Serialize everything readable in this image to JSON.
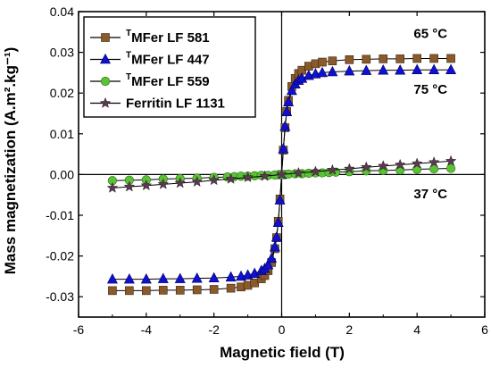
{
  "chart_data": {
    "type": "scatter",
    "title": "",
    "xlabel": "Magnetic field (T)",
    "ylabel": "Mass magnetization (A.m².kg⁻¹)",
    "xlim": [
      -6,
      6
    ],
    "ylim": [
      -0.035,
      0.04
    ],
    "xticks": [
      -6,
      -4,
      -2,
      0,
      2,
      4,
      6
    ],
    "yticks": [
      -0.03,
      -0.02,
      -0.01,
      0.0,
      0.01,
      0.02,
      0.03,
      0.04
    ],
    "xtick_labels": [
      "-6",
      "-4",
      "-2",
      "0",
      "2",
      "4",
      "6"
    ],
    "ytick_labels": [
      "-0.03",
      "-0.02",
      "-0.01",
      "0.00",
      "0.01",
      "0.02",
      "0.03",
      "0.04"
    ],
    "grid": false,
    "legend_position": "top-left",
    "series": [
      {
        "name_prefix": "T",
        "name": "MFer LF 581",
        "marker": "square",
        "color": "#8B5A2B",
        "points": [
          [
            -5,
            -0.0285
          ],
          [
            -4.5,
            -0.0285
          ],
          [
            -4,
            -0.0285
          ],
          [
            -3.5,
            -0.0284
          ],
          [
            -3,
            -0.0284
          ],
          [
            -2.5,
            -0.0283
          ],
          [
            -2,
            -0.0282
          ],
          [
            -1.5,
            -0.0279
          ],
          [
            -1.2,
            -0.0276
          ],
          [
            -1,
            -0.0272
          ],
          [
            -0.8,
            -0.0266
          ],
          [
            -0.6,
            -0.0256
          ],
          [
            -0.5,
            -0.0248
          ],
          [
            -0.4,
            -0.0236
          ],
          [
            -0.3,
            -0.0216
          ],
          [
            -0.2,
            -0.0182
          ],
          [
            -0.15,
            -0.0155
          ],
          [
            -0.1,
            -0.0115
          ],
          [
            -0.05,
            -0.006
          ],
          [
            0,
            0
          ],
          [
            0.05,
            0.006
          ],
          [
            0.1,
            0.0115
          ],
          [
            0.15,
            0.0155
          ],
          [
            0.2,
            0.0182
          ],
          [
            0.3,
            0.0216
          ],
          [
            0.4,
            0.0236
          ],
          [
            0.5,
            0.0248
          ],
          [
            0.6,
            0.0256
          ],
          [
            0.8,
            0.0266
          ],
          [
            1,
            0.0272
          ],
          [
            1.2,
            0.0276
          ],
          [
            1.5,
            0.0279
          ],
          [
            2,
            0.0282
          ],
          [
            2.5,
            0.0283
          ],
          [
            3,
            0.0284
          ],
          [
            3.5,
            0.0284
          ],
          [
            4,
            0.0285
          ],
          [
            4.5,
            0.0285
          ],
          [
            5,
            0.0285
          ]
        ]
      },
      {
        "name_prefix": "T",
        "name": "MFer LF 447",
        "marker": "triangle",
        "color": "#1010D0",
        "points": [
          [
            -5,
            -0.0257
          ],
          [
            -4.5,
            -0.0257
          ],
          [
            -4,
            -0.0257
          ],
          [
            -3.5,
            -0.0256
          ],
          [
            -3,
            -0.0256
          ],
          [
            -2.5,
            -0.0255
          ],
          [
            -2,
            -0.0254
          ],
          [
            -1.5,
            -0.0252
          ],
          [
            -1.2,
            -0.025
          ],
          [
            -1,
            -0.0247
          ],
          [
            -0.8,
            -0.0243
          ],
          [
            -0.6,
            -0.0236
          ],
          [
            -0.5,
            -0.0231
          ],
          [
            -0.4,
            -0.0222
          ],
          [
            -0.3,
            -0.0206
          ],
          [
            -0.2,
            -0.0178
          ],
          [
            -0.15,
            -0.0154
          ],
          [
            -0.1,
            -0.0118
          ],
          [
            -0.05,
            -0.0063
          ],
          [
            0,
            0
          ],
          [
            0.05,
            0.0063
          ],
          [
            0.1,
            0.0118
          ],
          [
            0.15,
            0.0154
          ],
          [
            0.2,
            0.0178
          ],
          [
            0.3,
            0.0206
          ],
          [
            0.4,
            0.0222
          ],
          [
            0.5,
            0.0231
          ],
          [
            0.6,
            0.0236
          ],
          [
            0.8,
            0.0243
          ],
          [
            1,
            0.0247
          ],
          [
            1.2,
            0.025
          ],
          [
            1.5,
            0.0252
          ],
          [
            2,
            0.0254
          ],
          [
            2.5,
            0.0255
          ],
          [
            3,
            0.0256
          ],
          [
            3.5,
            0.0256
          ],
          [
            4,
            0.0257
          ],
          [
            4.5,
            0.0257
          ],
          [
            5,
            0.0257
          ]
        ]
      },
      {
        "name_prefix": "T",
        "name": "MFer LF 559",
        "marker": "circle",
        "color": "#5BC236",
        "points": [
          [
            -5,
            -0.0015
          ],
          [
            -4.5,
            -0.0014
          ],
          [
            -4,
            -0.0013
          ],
          [
            -3.5,
            -0.0011
          ],
          [
            -3,
            -0.001
          ],
          [
            -2.5,
            -0.0009
          ],
          [
            -2,
            -0.0007
          ],
          [
            -1.6,
            -0.0006
          ],
          [
            -1.4,
            -0.0005
          ],
          [
            -1.2,
            -0.0004
          ],
          [
            -1,
            -0.0004
          ],
          [
            -0.8,
            -0.0003
          ],
          [
            -0.6,
            -0.0002
          ],
          [
            -0.4,
            -0.0002
          ],
          [
            -0.2,
            -0.0001
          ],
          [
            0,
            0
          ],
          [
            0.2,
            0.0001
          ],
          [
            0.4,
            0.0002
          ],
          [
            0.6,
            0.0002
          ],
          [
            0.8,
            0.0003
          ],
          [
            1,
            0.0004
          ],
          [
            1.2,
            0.0004
          ],
          [
            1.4,
            0.0005
          ],
          [
            1.6,
            0.0006
          ],
          [
            2,
            0.0007
          ],
          [
            2.5,
            0.0009
          ],
          [
            3,
            0.001
          ],
          [
            3.5,
            0.0011
          ],
          [
            4,
            0.0013
          ],
          [
            4.5,
            0.0014
          ],
          [
            5,
            0.0015
          ]
        ]
      },
      {
        "name_prefix": "",
        "name": "Ferritin LF 1131",
        "marker": "star",
        "color": "#5A3A50",
        "points": [
          [
            -5,
            -0.0033
          ],
          [
            -4.5,
            -0.003
          ],
          [
            -4,
            -0.0027
          ],
          [
            -3.5,
            -0.0024
          ],
          [
            -3,
            -0.0021
          ],
          [
            -2.5,
            -0.0018
          ],
          [
            -2,
            -0.0014
          ],
          [
            -1.5,
            -0.0011
          ],
          [
            -1,
            -0.0007
          ],
          [
            -0.5,
            -0.0004
          ],
          [
            0,
            0
          ],
          [
            0.5,
            0.0004
          ],
          [
            1,
            0.0007
          ],
          [
            1.5,
            0.0011
          ],
          [
            2,
            0.0014
          ],
          [
            2.5,
            0.0018
          ],
          [
            3,
            0.0021
          ],
          [
            3.5,
            0.0024
          ],
          [
            4,
            0.0027
          ],
          [
            4.5,
            0.003
          ],
          [
            5,
            0.0033
          ]
        ]
      }
    ],
    "annotations": [
      {
        "text": "65 °C",
        "x": 3.9,
        "y": 0.0335
      },
      {
        "text": "75 °C",
        "x": 3.9,
        "y": 0.0198
      },
      {
        "text": "37 °C",
        "x": 3.9,
        "y": -0.0058
      }
    ]
  }
}
